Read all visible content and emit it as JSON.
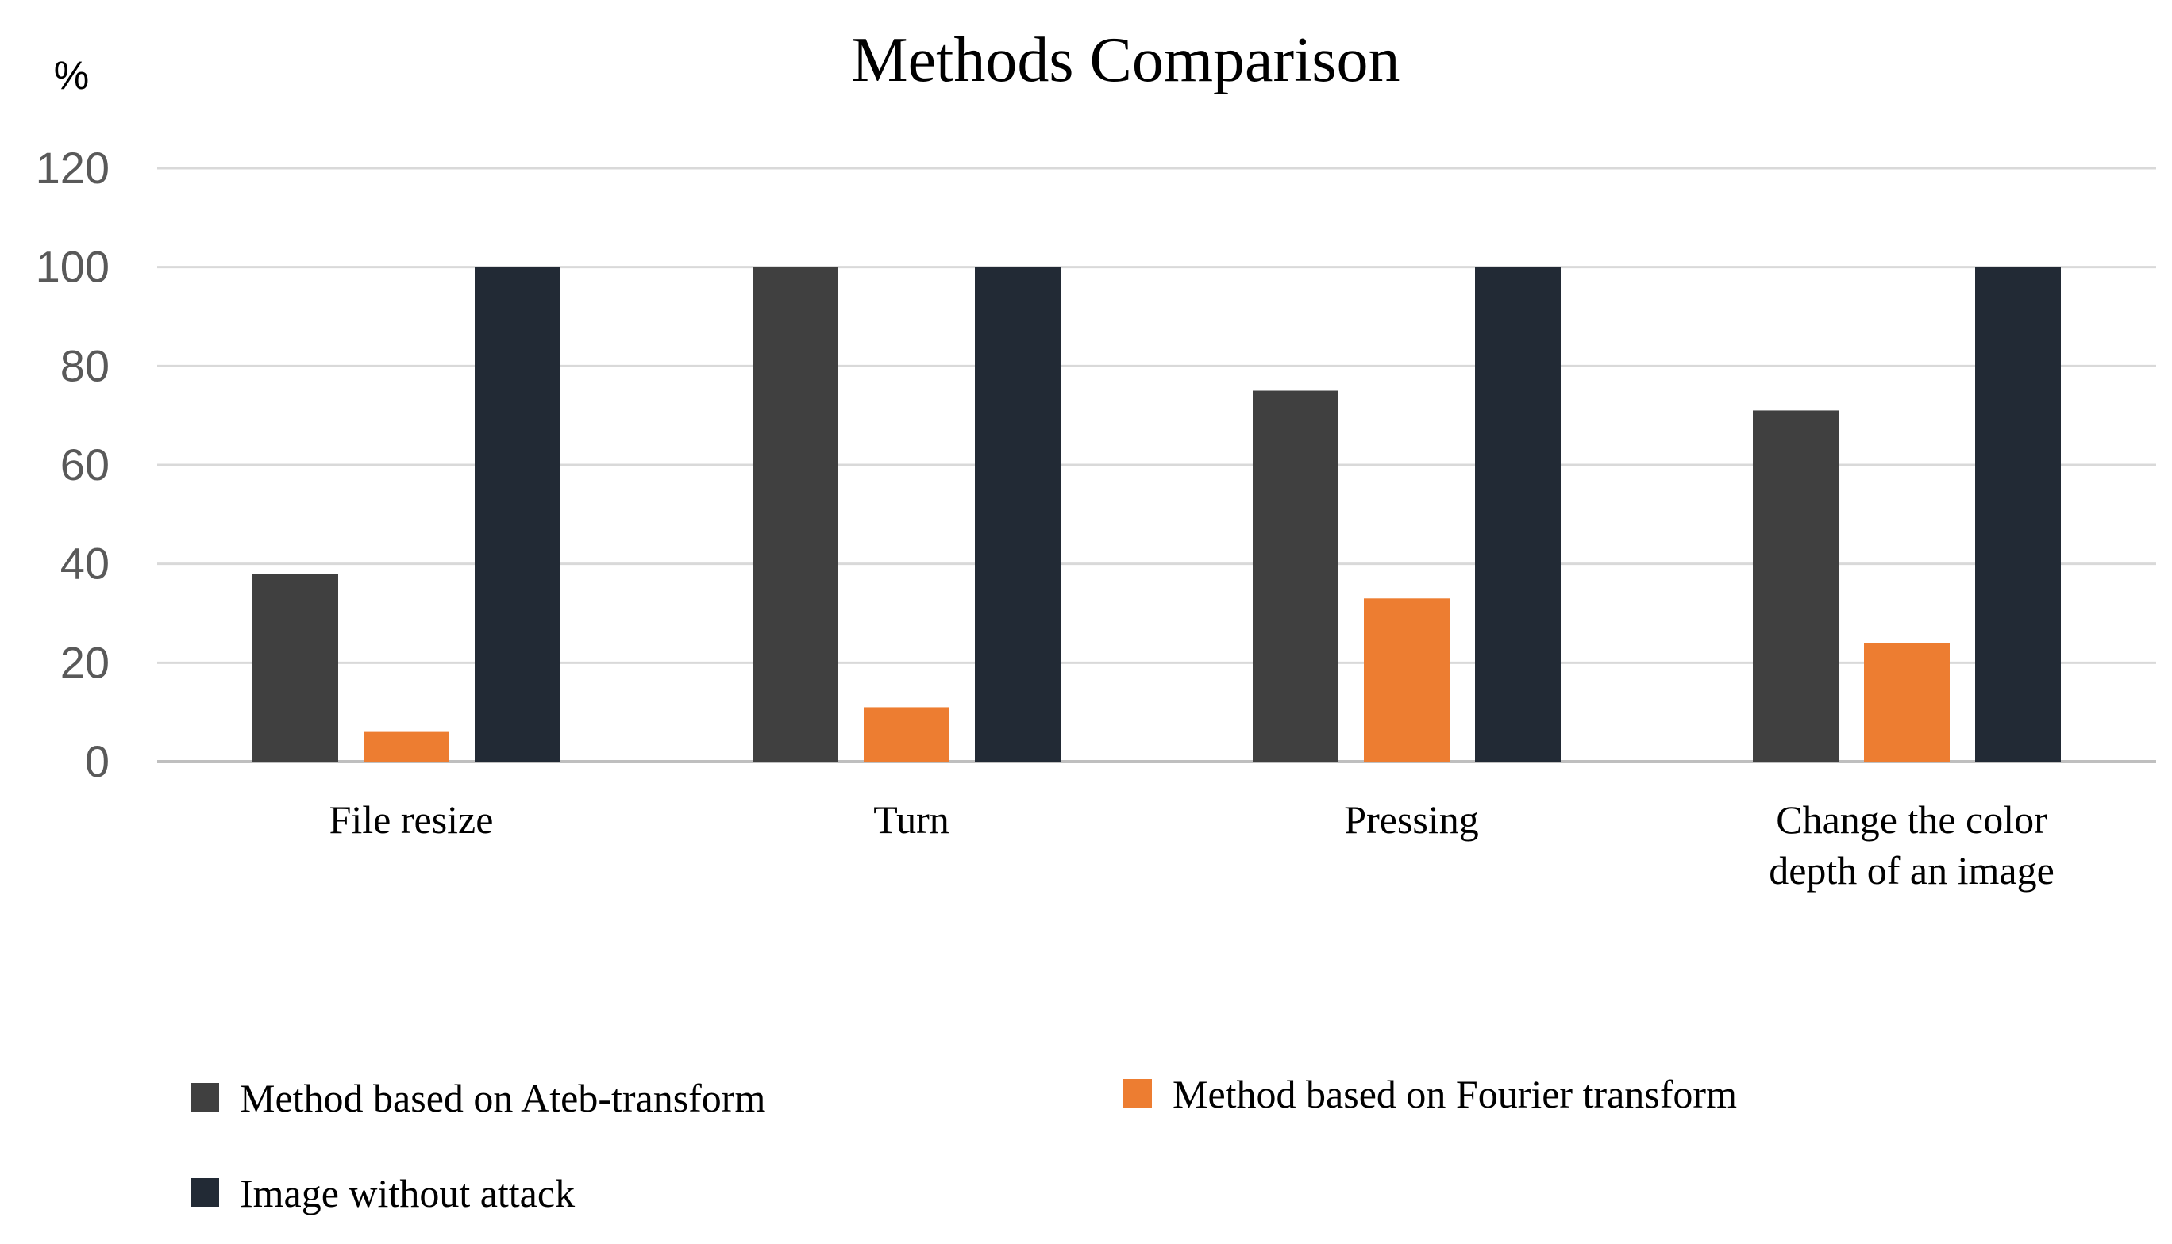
{
  "chart_data": {
    "type": "bar",
    "title": "Methods Comparison",
    "ylabel": "%",
    "xlabel": "",
    "ylim": [
      0,
      120
    ],
    "yticks": [
      0,
      20,
      40,
      60,
      80,
      100,
      120
    ],
    "grid": true,
    "legend_position": "bottom",
    "categories": [
      [
        "File resize"
      ],
      [
        "Turn"
      ],
      [
        "Pressing"
      ],
      [
        "Change the color",
        "depth of an image"
      ]
    ],
    "series": [
      {
        "name": "Method based on Ateb-transform",
        "color": "#404040",
        "values": [
          38,
          100,
          75,
          71
        ]
      },
      {
        "name": "Method based on Fourier transform",
        "color": "#ed7d31",
        "values": [
          6,
          11,
          33,
          24
        ]
      },
      {
        "name": "Image without attack",
        "color": "#222a35",
        "values": [
          100,
          100,
          100,
          100
        ]
      }
    ]
  }
}
